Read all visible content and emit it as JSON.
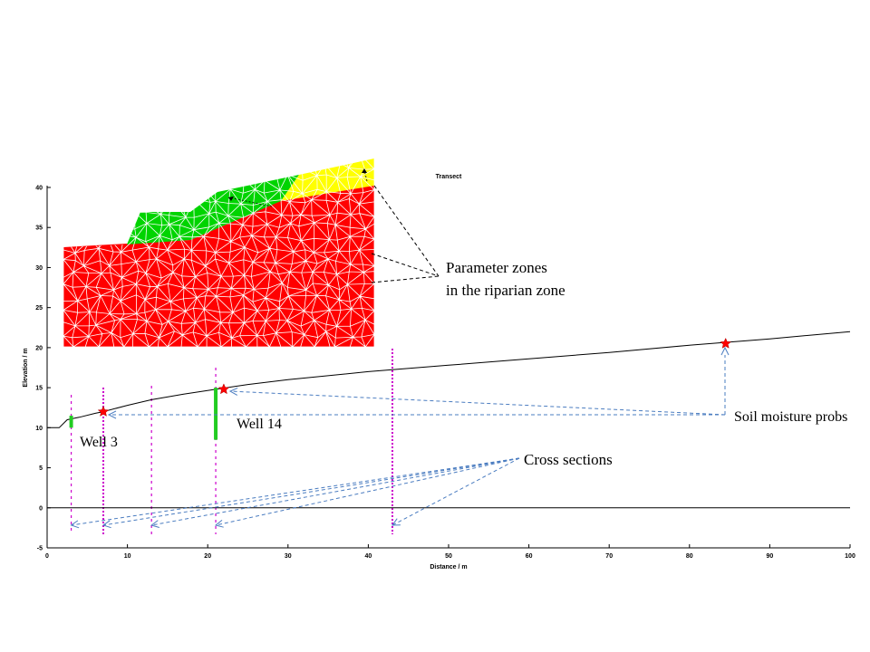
{
  "figure": {
    "title": "Transect",
    "xlabel": "Distance / m",
    "ylabel": "Elevation / m",
    "xticks": [
      0,
      10,
      20,
      30,
      40,
      50,
      60,
      70,
      80,
      90,
      100
    ],
    "yticks": [
      -5,
      0,
      5,
      10,
      15,
      20,
      25,
      30,
      35,
      40
    ],
    "xlim": [
      0,
      100
    ],
    "ylim": [
      -5,
      40
    ],
    "grid": false
  },
  "annotations": {
    "parameter_zones_line1": "Parameter  zones",
    "parameter_zones_line2": "in the riparian zone",
    "well3": "Well 3",
    "well14": "Well 14",
    "soil_moisture": "Soil moisture probs",
    "cross_sections": "Cross sections"
  },
  "colors": {
    "zone_red": "#ff0000",
    "zone_green": "#00d400",
    "zone_yellow": "#ffff00",
    "mesh": "#ffffff",
    "cross_section": "#cc00cc",
    "well": "#22cc22",
    "probe": "#ff0000",
    "arrow": "#4a7cc0"
  },
  "chart_data": {
    "type": "line",
    "title": "Transect",
    "xlabel": "Distance / m",
    "ylabel": "Elevation / m",
    "xlim": [
      0,
      100
    ],
    "ylim": [
      -5,
      40
    ],
    "series": [
      {
        "x": [
          0,
          1.5,
          2.5,
          4,
          6,
          7,
          10,
          13,
          17,
          21,
          25,
          30,
          40,
          50,
          60,
          70,
          80,
          90,
          100
        ],
        "y": [
          10,
          10,
          11,
          11.3,
          11.8,
          12,
          12.8,
          13.5,
          14.2,
          14.8,
          15.4,
          16.0,
          17.0,
          17.8,
          18.6,
          19.4,
          20.3,
          21.1,
          22.0
        ]
      },
      {
        "x": [
          0,
          100
        ],
        "y": [
          0,
          0
        ]
      }
    ],
    "cross_sections_x": [
      3,
      7,
      13,
      21,
      43
    ],
    "wells": [
      {
        "name": "Well 3",
        "x": 3,
        "y_top": 11.5,
        "y_bottom": 10
      },
      {
        "name": "Well 14",
        "x": 21,
        "y_top": 15,
        "y_bottom": 8.5
      }
    ],
    "soil_moisture_probes": [
      {
        "x": 7,
        "y": 12
      },
      {
        "x": 22,
        "y": 14.8
      },
      {
        "x": 84.5,
        "y": 20.5
      }
    ]
  }
}
